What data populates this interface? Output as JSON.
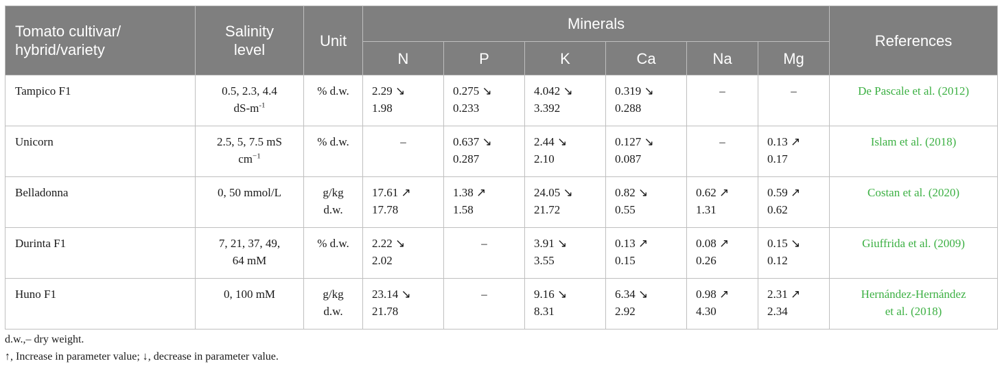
{
  "header": {
    "cultivar": [
      "Tomato cultivar/",
      "hybrid/variety"
    ],
    "salinity": [
      "Salinity",
      "level"
    ],
    "unit": "Unit",
    "minerals": "Minerals",
    "mineral_cols": [
      "N",
      "P",
      "K",
      "Ca",
      "Na",
      "Mg"
    ],
    "references": "References"
  },
  "rows": [
    {
      "cultivar": "Tampico F1",
      "salinity": [
        "0.5, 2.3, 4.4",
        "dS-m"
      ],
      "salinity_sup": "-1",
      "unit": [
        "% d.w.",
        ""
      ],
      "minerals": [
        [
          "2.29 ↘",
          "1.98"
        ],
        [
          "0.275 ↘",
          "0.233"
        ],
        [
          "4.042 ↘",
          "3.392"
        ],
        [
          "0.319 ↘",
          "0.288"
        ],
        [
          "–",
          ""
        ],
        [
          "–",
          ""
        ]
      ],
      "reference": [
        "De Pascale et al. (2012)",
        ""
      ]
    },
    {
      "cultivar": "Unicorn",
      "salinity": [
        "2.5, 5, 7.5 mS",
        "cm"
      ],
      "salinity_sup": "−1",
      "unit": [
        "% d.w.",
        ""
      ],
      "minerals": [
        [
          "–",
          ""
        ],
        [
          "0.637 ↘",
          "0.287"
        ],
        [
          "2.44 ↘",
          "2.10"
        ],
        [
          "0.127 ↘",
          "0.087"
        ],
        [
          "–",
          ""
        ],
        [
          "0.13 ↗",
          "0.17"
        ]
      ],
      "reference": [
        "Islam et al. (2018)",
        ""
      ]
    },
    {
      "cultivar": "Belladonna",
      "salinity": [
        "0, 50 mmol/L",
        ""
      ],
      "salinity_sup": "",
      "unit": [
        "g/kg",
        "d.w."
      ],
      "minerals": [
        [
          "17.61 ↗",
          "17.78"
        ],
        [
          "1.38 ↗",
          "1.58"
        ],
        [
          "24.05 ↘",
          "21.72"
        ],
        [
          "0.82 ↘",
          "0.55"
        ],
        [
          "0.62 ↗",
          "1.31"
        ],
        [
          "0.59 ↗",
          "0.62"
        ]
      ],
      "reference": [
        "Costan et al. (2020)",
        ""
      ]
    },
    {
      "cultivar": "Durinta F1",
      "salinity": [
        "7, 21, 37, 49,",
        "64 mM"
      ],
      "salinity_sup": "",
      "unit": [
        "% d.w.",
        ""
      ],
      "minerals": [
        [
          "2.22 ↘",
          "2.02"
        ],
        [
          "–",
          ""
        ],
        [
          "3.91 ↘",
          "3.55"
        ],
        [
          "0.13 ↗",
          "0.15"
        ],
        [
          "0.08 ↗",
          "0.26"
        ],
        [
          "0.15 ↘",
          "0.12"
        ]
      ],
      "reference": [
        "Giuffrida et al. (2009)",
        ""
      ]
    },
    {
      "cultivar": "Huno F1",
      "salinity": [
        "0, 100 mM",
        ""
      ],
      "salinity_sup": "",
      "unit": [
        "g/kg",
        "d.w."
      ],
      "minerals": [
        [
          "23.14 ↘",
          "21.78"
        ],
        [
          "–",
          ""
        ],
        [
          "9.16 ↘",
          "8.31"
        ],
        [
          "6.34 ↘",
          "2.92"
        ],
        [
          "0.98 ↗",
          "4.30"
        ],
        [
          "2.31 ↗",
          "2.34"
        ]
      ],
      "reference": [
        "Hernández-Hernández",
        "et al. (2018)"
      ]
    }
  ],
  "footnotes": [
    "d.w.,– dry weight.",
    "↑, Increase in parameter value; ↓, decrease in parameter value."
  ],
  "colors": {
    "header_bg": "#7f7f7f",
    "header_text": "#ffffff",
    "reference_link": "#3cb043",
    "border": "#bfbfbf"
  }
}
